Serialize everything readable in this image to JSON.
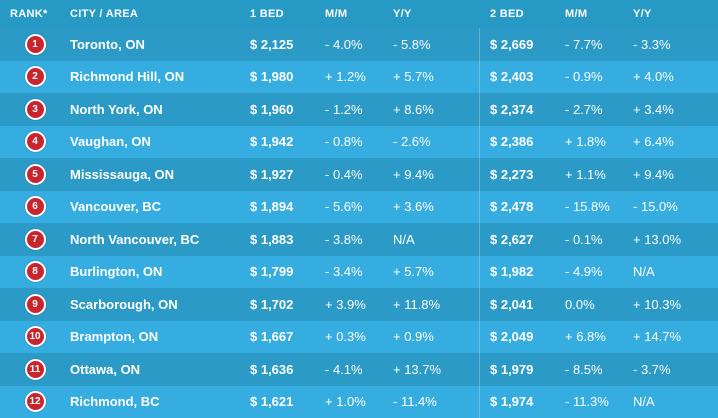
{
  "header": {
    "rank": "RANK*",
    "city": "CITY / AREA",
    "bed1": "1 BED",
    "mm1": "M/M",
    "yy1": "Y/Y",
    "bed2": "2 BED",
    "mm2": "M/M",
    "yy2": "Y/Y"
  },
  "colors": {
    "badge": "#c9252e",
    "row_dark": "#2b9ac6",
    "row_light": "#35ade0"
  },
  "rows": [
    {
      "rank": "1",
      "city": "Toronto, ON",
      "bed1": "$ 2,125",
      "mm1": "- 4.0%",
      "yy1": "- 5.8%",
      "bed2": "$ 2,669",
      "mm2": "- 7.7%",
      "yy2": "- 3.3%"
    },
    {
      "rank": "2",
      "city": "Richmond Hill, ON",
      "bed1": "$ 1,980",
      "mm1": "+ 1.2%",
      "yy1": "+ 5.7%",
      "bed2": "$ 2,403",
      "mm2": "- 0.9%",
      "yy2": "+ 4.0%"
    },
    {
      "rank": "3",
      "city": "North York, ON",
      "bed1": "$ 1,960",
      "mm1": "- 1.2%",
      "yy1": "+ 8.6%",
      "bed2": "$ 2,374",
      "mm2": "- 2.7%",
      "yy2": "+ 3.4%"
    },
    {
      "rank": "4",
      "city": "Vaughan, ON",
      "bed1": "$ 1,942",
      "mm1": "- 0.8%",
      "yy1": "- 2.6%",
      "bed2": "$ 2,386",
      "mm2": "+ 1.8%",
      "yy2": "+ 6.4%"
    },
    {
      "rank": "5",
      "city": "Mississauga, ON",
      "bed1": "$ 1,927",
      "mm1": "- 0.4%",
      "yy1": "+ 9.4%",
      "bed2": "$ 2,273",
      "mm2": "+ 1.1%",
      "yy2": "+ 9.4%"
    },
    {
      "rank": "6",
      "city": "Vancouver, BC",
      "bed1": "$ 1,894",
      "mm1": "- 5.6%",
      "yy1": "+ 3.6%",
      "bed2": "$ 2,478",
      "mm2": "- 15.8%",
      "yy2": "- 15.0%"
    },
    {
      "rank": "7",
      "city": "North Vancouver, BC",
      "bed1": "$ 1,883",
      "mm1": "- 3.8%",
      "yy1": "N/A",
      "bed2": "$ 2,627",
      "mm2": "- 0.1%",
      "yy2": "+ 13.0%"
    },
    {
      "rank": "8",
      "city": "Burlington, ON",
      "bed1": "$ 1,799",
      "mm1": "- 3.4%",
      "yy1": "+ 5.7%",
      "bed2": "$ 1,982",
      "mm2": "- 4.9%",
      "yy2": "N/A"
    },
    {
      "rank": "9",
      "city": "Scarborough, ON",
      "bed1": "$ 1,702",
      "mm1": "+ 3.9%",
      "yy1": "+ 11.8%",
      "bed2": "$ 2,041",
      "mm2": "0.0%",
      "yy2": "+ 10.3%"
    },
    {
      "rank": "10",
      "city": "Brampton, ON",
      "bed1": "$ 1,667",
      "mm1": "+ 0.3%",
      "yy1": "+ 0.9%",
      "bed2": "$ 2,049",
      "mm2": "+ 6.8%",
      "yy2": "+ 14.7%"
    },
    {
      "rank": "11",
      "city": "Ottawa, ON",
      "bed1": "$ 1,636",
      "mm1": "- 4.1%",
      "yy1": "+ 13.7%",
      "bed2": "$ 1,979",
      "mm2": "- 8.5%",
      "yy2": "- 3.7%"
    },
    {
      "rank": "12",
      "city": "Richmond, BC",
      "bed1": "$ 1,621",
      "mm1": "+ 1.0%",
      "yy1": "- 11.4%",
      "bed2": "$ 1,974",
      "mm2": "- 11.3%",
      "yy2": "N/A"
    }
  ]
}
